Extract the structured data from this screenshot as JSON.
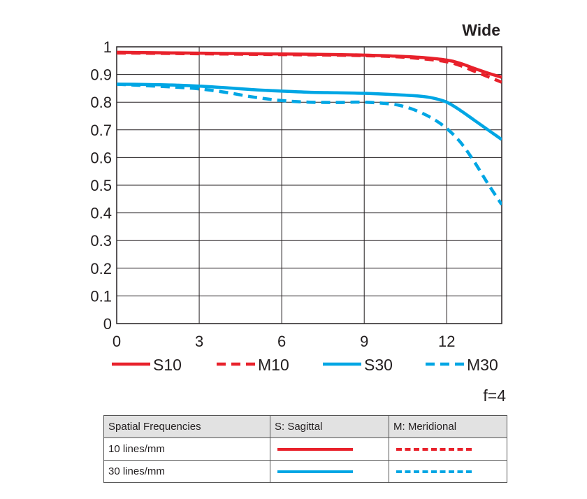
{
  "chart_data": {
    "type": "line",
    "title": "Wide",
    "xlim": [
      0,
      14
    ],
    "ylim": [
      0,
      1
    ],
    "x_ticks": [
      "0",
      "3",
      "6",
      "9",
      "12"
    ],
    "y_ticks": [
      "0",
      "0.1",
      "0.2",
      "0.3",
      "0.4",
      "0.5",
      "0.6",
      "0.7",
      "0.8",
      "0.9",
      "1"
    ],
    "grid": true,
    "series": [
      {
        "name": "S10",
        "color": "#e8212b",
        "dash": "solid",
        "x": [
          0,
          2,
          4,
          6,
          8,
          9,
          10,
          11,
          12,
          12.5,
          13,
          13.5,
          14
        ],
        "y": [
          0.98,
          0.978,
          0.976,
          0.974,
          0.972,
          0.97,
          0.967,
          0.962,
          0.952,
          0.94,
          0.922,
          0.905,
          0.89
        ]
      },
      {
        "name": "M10",
        "color": "#e8212b",
        "dash": "dashed",
        "x": [
          0,
          2,
          4,
          6,
          8,
          9,
          10,
          11,
          12,
          12.5,
          13,
          13.5,
          14
        ],
        "y": [
          0.978,
          0.976,
          0.974,
          0.972,
          0.97,
          0.968,
          0.965,
          0.958,
          0.946,
          0.932,
          0.912,
          0.892,
          0.872
        ]
      },
      {
        "name": "S30",
        "color": "#00a6e4",
        "dash": "solid",
        "x": [
          0,
          1,
          2,
          3,
          4,
          5,
          6,
          7,
          8,
          9,
          10,
          11,
          11.5,
          12,
          12.5,
          13,
          13.5,
          14
        ],
        "y": [
          0.865,
          0.864,
          0.862,
          0.858,
          0.852,
          0.845,
          0.84,
          0.836,
          0.834,
          0.832,
          0.828,
          0.822,
          0.815,
          0.8,
          0.77,
          0.735,
          0.7,
          0.665
        ]
      },
      {
        "name": "M30",
        "color": "#00a6e4",
        "dash": "dashed",
        "x": [
          0,
          1,
          2,
          3,
          4,
          5,
          6,
          7,
          8,
          9,
          10,
          10.5,
          11,
          11.5,
          12,
          12.5,
          13,
          13.5,
          14
        ],
        "y": [
          0.865,
          0.86,
          0.855,
          0.848,
          0.835,
          0.818,
          0.806,
          0.8,
          0.799,
          0.8,
          0.793,
          0.783,
          0.765,
          0.74,
          0.705,
          0.655,
          0.585,
          0.505,
          0.43
        ]
      }
    ]
  },
  "aperture_label": "f=4",
  "table": {
    "headers": [
      "Spatial Frequencies",
      "S: Sagittal",
      "M: Meridional"
    ],
    "rows": [
      {
        "label": "10 lines/mm",
        "color": "#e8212b"
      },
      {
        "label": "30 lines/mm",
        "color": "#00a6e4"
      }
    ]
  }
}
